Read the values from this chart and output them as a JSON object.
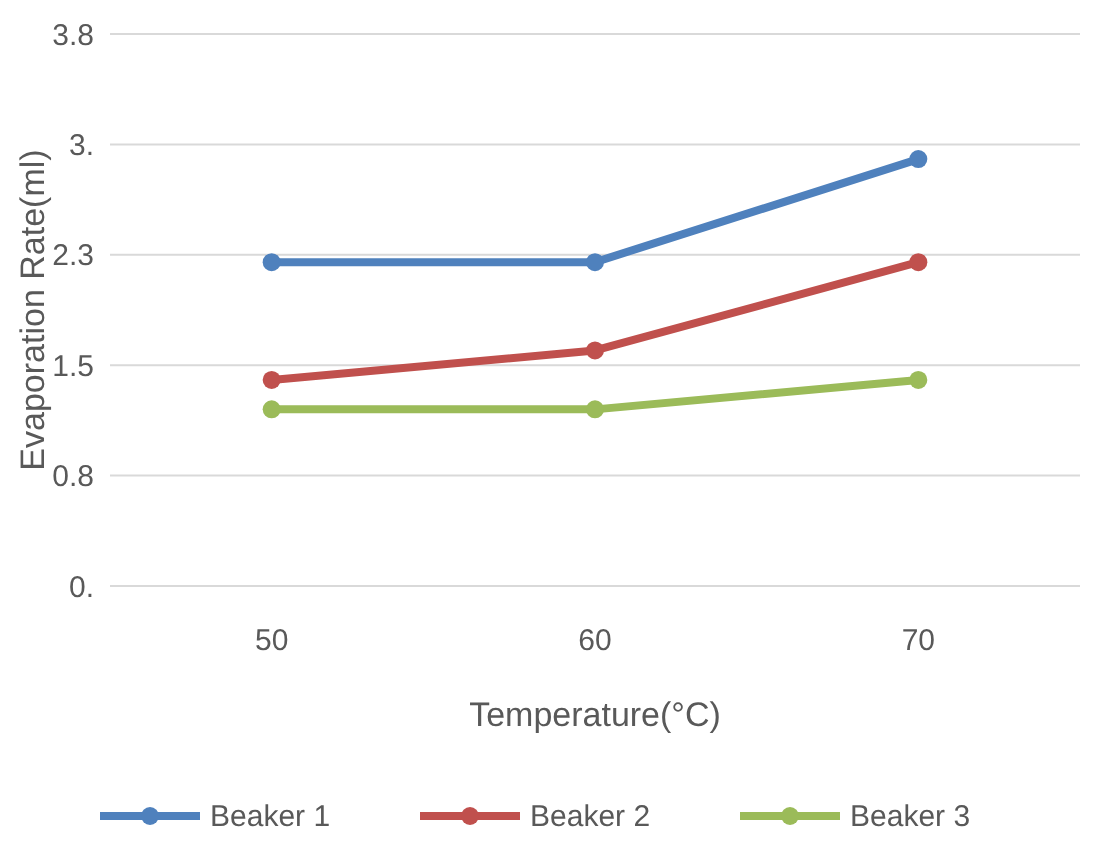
{
  "chart_data": {
    "type": "line",
    "xlabel": "Temperature(°C)",
    "ylabel": "Evaporation Rate(ml)",
    "categories": [
      "50",
      "60",
      "70"
    ],
    "series": [
      {
        "name": "Beaker 1",
        "color": "#4f81bd",
        "values": [
          2.2,
          2.2,
          2.9
        ]
      },
      {
        "name": "Beaker 2",
        "color": "#c0504d",
        "values": [
          1.4,
          1.6,
          2.2
        ]
      },
      {
        "name": "Beaker 3",
        "color": "#9bbb59",
        "values": [
          1.2,
          1.2,
          1.4
        ]
      }
    ],
    "ylim": [
      0,
      3.75
    ],
    "yticks": [
      {
        "value": 0,
        "label": "0."
      },
      {
        "value": 0.75,
        "label": "0.8"
      },
      {
        "value": 1.5,
        "label": "1.5"
      },
      {
        "value": 2.25,
        "label": "2.3"
      },
      {
        "value": 3,
        "label": "3."
      },
      {
        "value": 3.75,
        "label": "3.8"
      }
    ],
    "grid": "y",
    "legend": "bottom",
    "marker": "circle",
    "line_style": "solid"
  }
}
